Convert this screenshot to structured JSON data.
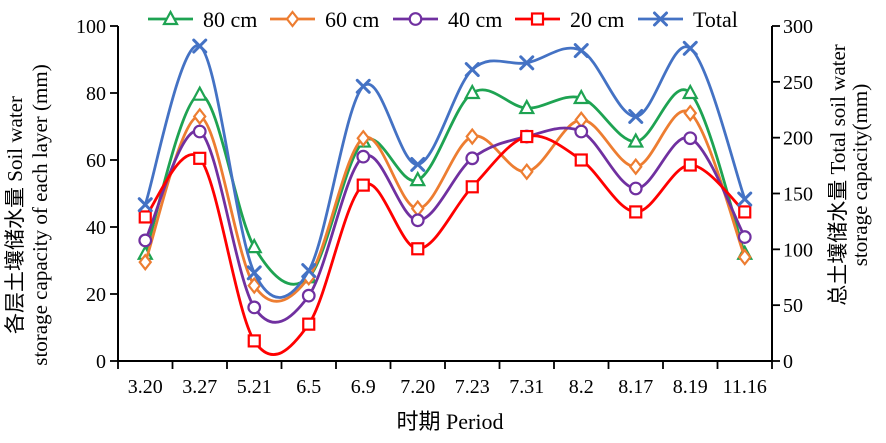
{
  "chart_data": {
    "type": "line",
    "smooth": true,
    "grid": false,
    "legend_position": "top",
    "x_axis": {
      "title": "时期 Period",
      "categories": [
        "3.20",
        "3.27",
        "5.21",
        "6.5",
        "6.9",
        "7.20",
        "7.23",
        "7.31",
        "8.2",
        "8.17",
        "8.19",
        "11.16"
      ]
    },
    "left_axis": {
      "title_lines": [
        "各层土壤储水量 Soil water",
        "storage capacity of each layer (mm)"
      ],
      "min": 0,
      "max": 100,
      "ticks": [
        0,
        20,
        40,
        60,
        80,
        100
      ]
    },
    "right_axis": {
      "title_lines": [
        "总土壤储水量 Total soil water",
        "storage capacity(mm)"
      ],
      "min": 0,
      "max": 300,
      "ticks": [
        0,
        50,
        100,
        150,
        200,
        250,
        300
      ]
    },
    "series": [
      {
        "name": "80 cm",
        "axis": "left",
        "color": "#1EA352",
        "marker": "triangle",
        "values": [
          32,
          79.5,
          34,
          25,
          65.5,
          54,
          80,
          75.5,
          78.5,
          65.5,
          80,
          32
        ]
      },
      {
        "name": "60 cm",
        "axis": "left",
        "color": "#ED7D31",
        "marker": "diamond",
        "values": [
          29.5,
          73,
          22.5,
          25,
          66.5,
          45.5,
          67,
          56.5,
          72,
          58,
          74,
          31
        ]
      },
      {
        "name": "40 cm",
        "axis": "left",
        "color": "#7030A0",
        "marker": "circle",
        "values": [
          36,
          68.5,
          16,
          19.5,
          61,
          42,
          60.5,
          67,
          68.5,
          51.5,
          66.5,
          37
        ]
      },
      {
        "name": "20 cm",
        "axis": "left",
        "color": "#FF0000",
        "marker": "square",
        "values": [
          43,
          60.5,
          6,
          11,
          52.5,
          33.5,
          52,
          67,
          60,
          44.5,
          58.5,
          44.5
        ]
      },
      {
        "name": "Total",
        "axis": "right",
        "color": "#4472C4",
        "marker": "x",
        "values": [
          140,
          282,
          79,
          81,
          246,
          176,
          261,
          267,
          278,
          219,
          280,
          145
        ]
      }
    ]
  }
}
